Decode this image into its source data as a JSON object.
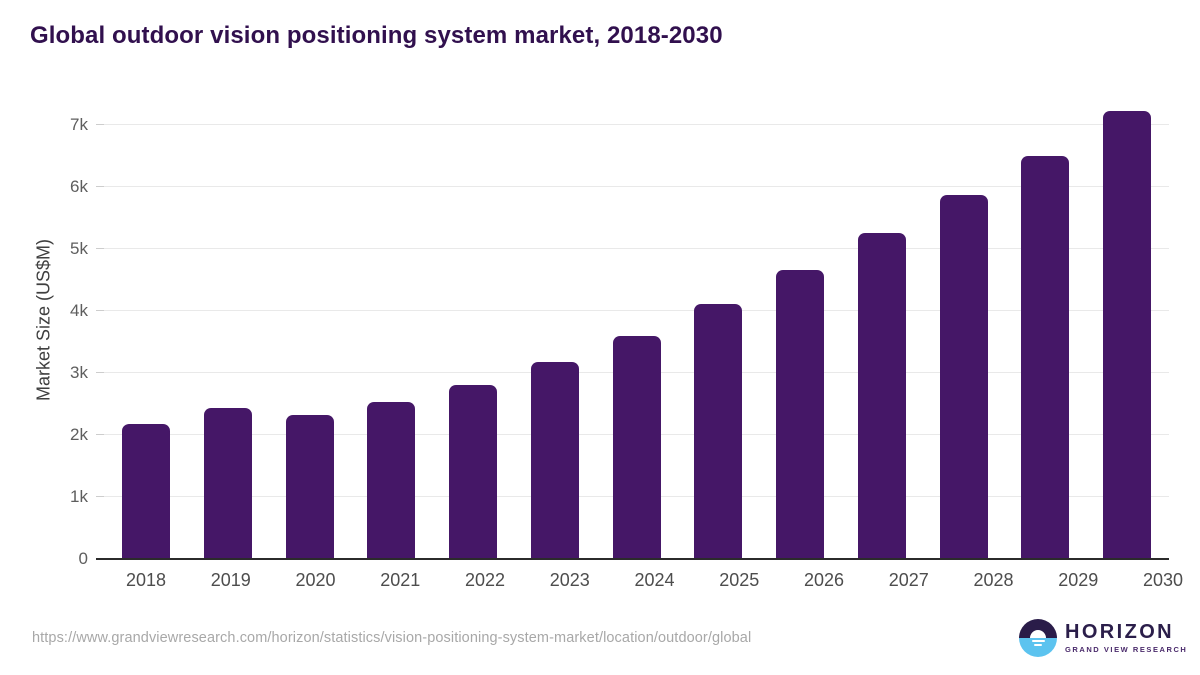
{
  "header": {
    "title": "Global outdoor vision positioning system market, 2018-2030"
  },
  "chart_data": {
    "type": "bar",
    "title": "Global outdoor vision positioning system market, 2018-2030",
    "categories": [
      "2018",
      "2019",
      "2020",
      "2021",
      "2022",
      "2023",
      "2024",
      "2025",
      "2026",
      "2027",
      "2028",
      "2029",
      "2030"
    ],
    "values": [
      2170,
      2430,
      2330,
      2540,
      2810,
      3170,
      3600,
      4110,
      4660,
      5260,
      5870,
      6500,
      7220
    ],
    "xlabel": "",
    "ylabel": "Market Size (US$M)",
    "ylim": [
      0,
      7000
    ],
    "ytick_step": 1000,
    "ytick_labels": [
      "0",
      "1k",
      "2k",
      "3k",
      "4k",
      "5k",
      "6k",
      "7k"
    ],
    "grid": true,
    "legend_position": "none",
    "bar_color": "#451767",
    "gridline_color": "#e9e9e9",
    "axis_line_color": "#2b2b2b",
    "title_color": "#31104e"
  },
  "footer": {
    "source_url": "https://www.grandviewresearch.com/horizon/statistics/vision-positioning-system-market/location/outdoor/global",
    "logo": {
      "brand": "HORIZON",
      "subbrand": "GRAND VIEW RESEARCH",
      "icon": "sun-over-water-icon",
      "brand_color": "#2b1e4a",
      "icon_top_color": "#2a1c49",
      "icon_bottom_color": "#5cc3ef"
    }
  }
}
